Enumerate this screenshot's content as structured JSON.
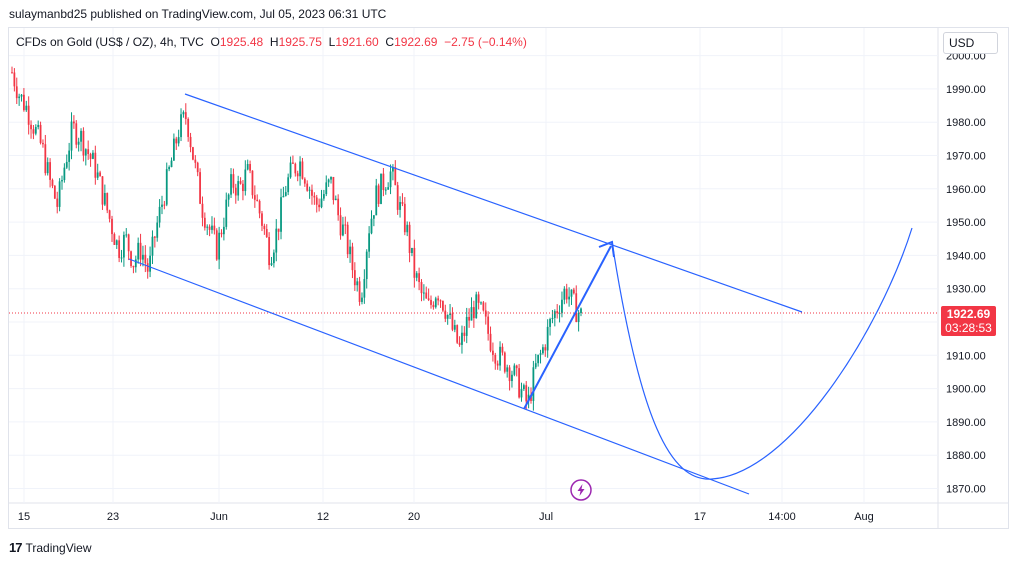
{
  "header": {
    "published": "sulaymanbd25 published on TradingView.com, Jul 05, 2023 06:31 UTC"
  },
  "legend": {
    "symbol": "CFDs on Gold (US$ / OZ), 4h, TVC",
    "o_label": "O",
    "o": "1925.48",
    "h_label": "H",
    "h": "1925.75",
    "l_label": "L",
    "l": "1921.60",
    "c_label": "C",
    "c": "1922.69",
    "change": "−2.75 (−0.14%)"
  },
  "currency_button": "USD",
  "price_tag": {
    "price": "1922.69",
    "countdown": "03:28:53"
  },
  "footer": {
    "brand": "TradingView",
    "logo_text": "17"
  },
  "colors": {
    "up": "#089981",
    "down": "#f23645",
    "drawing": "#2962ff",
    "grid": "#f0f3fa"
  },
  "chart_data": {
    "type": "candlestick",
    "y_axis": {
      "ticks": [
        2000,
        1990,
        1980,
        1970,
        1960,
        1950,
        1940,
        1930,
        1920,
        1910,
        1900,
        1890,
        1880,
        1870
      ],
      "unit": "USD"
    },
    "x_axis": {
      "labels": [
        "15",
        "23",
        "Jun",
        "12",
        "20",
        "Jul",
        "17",
        "14:00",
        "Aug"
      ]
    },
    "last_price": 1922.69,
    "series": [
      {
        "close_path": [
          1995,
          1988,
          1984,
          1978,
          1972,
          1962,
          1955,
          1968,
          1978,
          1976,
          1971,
          1966,
          1958,
          1950,
          1942,
          1945,
          1938,
          1942,
          1935,
          1948,
          1958,
          1968,
          1978,
          1982,
          1968,
          1955,
          1948,
          1942,
          1952,
          1962,
          1960,
          1965,
          1958,
          1950,
          1940,
          1948,
          1960,
          1966,
          1968,
          1962,
          1955,
          1958,
          1962,
          1952,
          1945,
          1935,
          1928,
          1948,
          1958,
          1962,
          1965,
          1955,
          1948,
          1935,
          1928,
          1924,
          1930,
          1925,
          1918,
          1912,
          1920,
          1925,
          1922,
          1915,
          1910,
          1908,
          1905,
          1900,
          1895,
          1906,
          1912,
          1920,
          1925,
          1930,
          1925,
          1922
        ]
      }
    ],
    "annotations": [
      {
        "type": "channel-line",
        "from": [
          "May 26",
          1989
        ],
        "to": [
          "Jul 24",
          1925
        ]
      },
      {
        "type": "channel-line",
        "from": [
          "May 24",
          1940
        ],
        "to": [
          "Jul 19",
          1867
        ]
      },
      {
        "type": "arrow",
        "from": [
          "Jun 29",
          1894
        ],
        "to": [
          "Jul 08",
          1944
        ]
      },
      {
        "type": "curve",
        "points": [
          [
            "Jul 08",
            1944
          ],
          [
            "Jul 18",
            1872
          ],
          [
            "Aug 05",
            1949
          ]
        ]
      }
    ]
  }
}
